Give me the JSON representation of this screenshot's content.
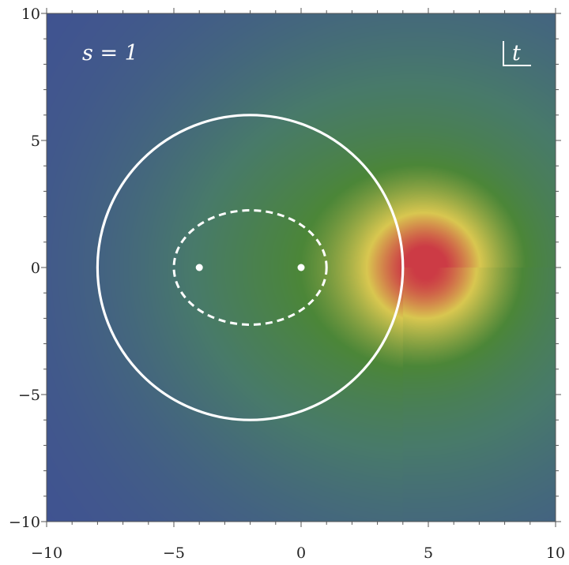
{
  "chart_data": {
    "type": "heatmap",
    "title": "",
    "xlabel": "",
    "ylabel": "",
    "xlim": [
      -10,
      10
    ],
    "ylim": [
      -10,
      10
    ],
    "x_ticks": [
      -10,
      -5,
      0,
      5,
      10
    ],
    "y_ticks": [
      -10,
      -5,
      0,
      5,
      10
    ],
    "x_tick_labels": [
      "−10",
      "−5",
      "0",
      "5",
      "10"
    ],
    "y_tick_labels": [
      "−10",
      "−5",
      "0",
      "5",
      "10"
    ],
    "annotation_param": "s = 1",
    "annotation_variable": "t",
    "colormap": [
      "#3f4e96",
      "#487a6a",
      "#4b8638",
      "#d9c750",
      "#cc3b45"
    ],
    "heat_peak": [
      5,
      0
    ],
    "branch_cut": {
      "y": 0,
      "x_from": 4,
      "x_to": 10
    },
    "circle_solid": {
      "center": [
        -2,
        0
      ],
      "radius": 6
    },
    "circle_dashed": {
      "center": [
        -2,
        0
      ],
      "radius": 3
    },
    "points": [
      [
        -4,
        0
      ],
      [
        0,
        0
      ]
    ]
  },
  "colors": {
    "overlay": "#ffffff",
    "axis": "#555555"
  }
}
